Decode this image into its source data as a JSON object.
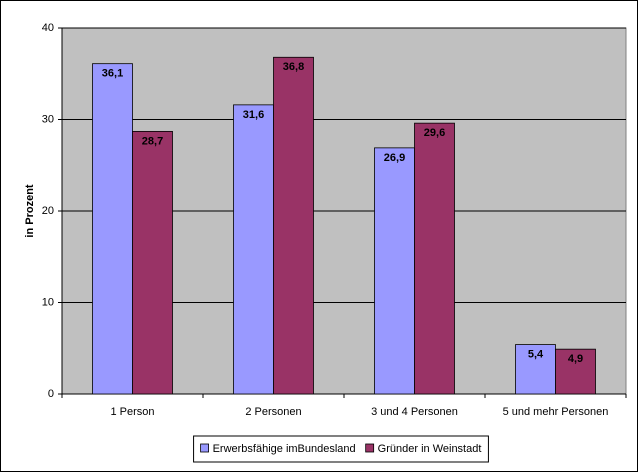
{
  "chart_data": {
    "type": "bar",
    "categories": [
      "1 Person",
      "2 Personen",
      "3 und 4 Personen",
      "5 und mehr Personen"
    ],
    "y_label": "in Prozent",
    "series": [
      {
        "name": "Erwerbsfähige imBundesland",
        "color": "#9999ff",
        "values": [
          36.1,
          31.6,
          26.9,
          5.4
        ],
        "value_labels": [
          "36,1",
          "31,6",
          "26,9",
          "5,4"
        ]
      },
      {
        "name": "Gründer in Weinstadt",
        "color": "#993366",
        "values": [
          28.7,
          36.8,
          29.6,
          4.9
        ],
        "value_labels": [
          "28,7",
          "36,8",
          "29,6",
          "4,9"
        ]
      }
    ],
    "ylim": [
      0,
      40
    ],
    "yticks": [
      0,
      10,
      20,
      30,
      40
    ],
    "grid": true,
    "plot_background": "#c0c0c0",
    "legend": "bottom"
  }
}
